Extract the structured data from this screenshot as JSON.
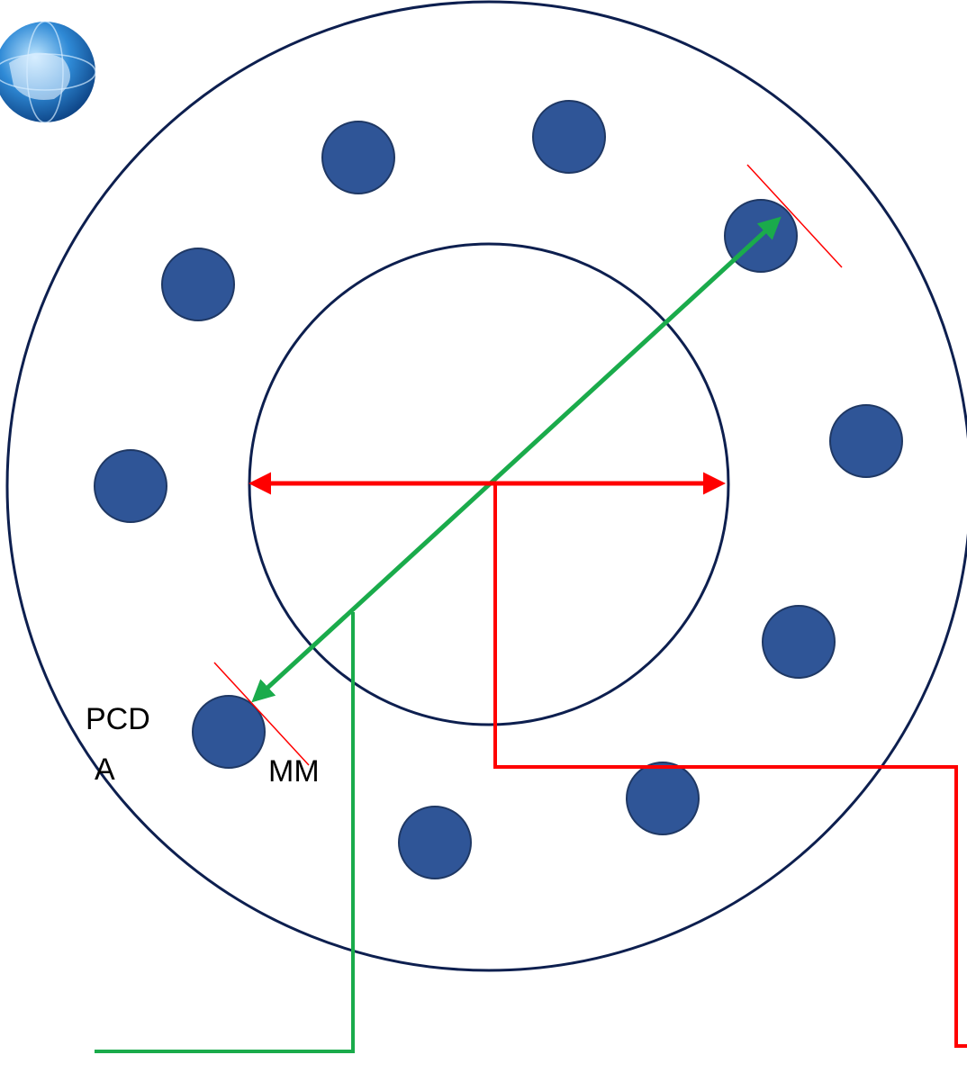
{
  "labels": {
    "title": "PCD",
    "prefix": "A",
    "unit": "MM"
  }
}
